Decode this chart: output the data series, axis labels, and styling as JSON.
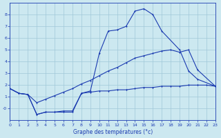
{
  "xlabel": "Graphe des températures (°c)",
  "background_color": "#cce8f0",
  "grid_color": "#a0c8d8",
  "line_color": "#1a3ab0",
  "ylim": [
    -1.0,
    9.0
  ],
  "xlim": [
    0,
    23
  ],
  "yticks": [
    0,
    1,
    2,
    3,
    4,
    5,
    6,
    7,
    8
  ],
  "ytick_labels": [
    "-0",
    "1",
    "2",
    "3",
    "4",
    "5",
    "6",
    "7",
    "8"
  ],
  "xticks": [
    0,
    1,
    2,
    3,
    4,
    5,
    6,
    7,
    8,
    9,
    10,
    11,
    12,
    13,
    14,
    15,
    16,
    17,
    18,
    19,
    20,
    21,
    22,
    23
  ],
  "curve_upper_x": [
    0,
    1,
    2,
    3,
    4,
    5,
    6,
    7,
    8,
    9,
    10,
    11,
    12,
    13,
    14,
    15,
    16,
    17,
    19,
    20,
    21,
    23
  ],
  "curve_upper_y": [
    1.7,
    1.3,
    1.2,
    -0.5,
    -0.3,
    -0.3,
    -0.3,
    -0.3,
    1.3,
    1.5,
    4.7,
    6.6,
    6.7,
    7.0,
    8.3,
    8.5,
    8.0,
    6.6,
    5.0,
    3.2,
    2.5,
    1.9
  ],
  "curve_mid_x": [
    0,
    1,
    2,
    3,
    4,
    5,
    6,
    7,
    8,
    9,
    10,
    11,
    12,
    13,
    14,
    15,
    16,
    17,
    18,
    19,
    20,
    21,
    23
  ],
  "curve_mid_y": [
    1.7,
    1.3,
    1.2,
    0.5,
    0.8,
    1.1,
    1.4,
    1.7,
    2.1,
    2.4,
    2.8,
    3.2,
    3.5,
    3.9,
    4.3,
    4.5,
    4.7,
    4.9,
    5.0,
    4.8,
    5.0,
    3.3,
    1.9
  ],
  "curve_low_x": [
    0,
    1,
    2,
    3,
    4,
    5,
    6,
    7,
    8,
    9,
    10,
    11,
    12,
    13,
    14,
    15,
    16,
    17,
    18,
    19,
    20,
    21,
    22,
    23
  ],
  "curve_low_y": [
    1.7,
    1.3,
    1.2,
    -0.5,
    -0.3,
    -0.3,
    -0.2,
    -0.2,
    1.3,
    1.4,
    1.5,
    1.5,
    1.6,
    1.6,
    1.7,
    1.8,
    1.8,
    1.9,
    1.9,
    1.9,
    2.0,
    2.0,
    2.0,
    1.9
  ]
}
